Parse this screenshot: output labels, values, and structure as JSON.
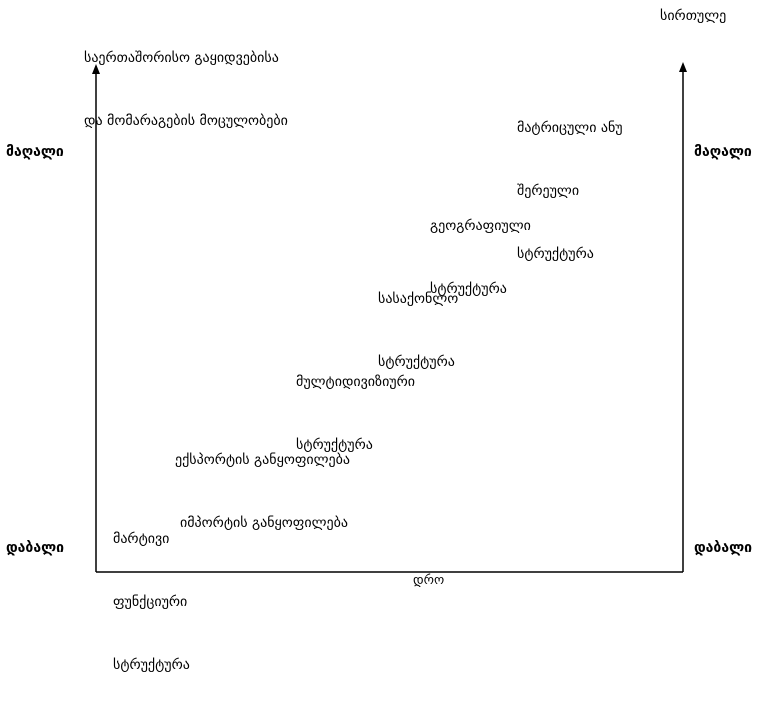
{
  "axes": {
    "left_title_lines": [
      "საერთაშორისო გაყიდვებისა",
      "და მომარაგების მოცულობები"
    ],
    "right_title": "სირთულე",
    "x_label": "დრო",
    "left_high": "მაღალი",
    "left_low": "დაბალი",
    "right_high": "მაღალი",
    "right_low": "დაბალი"
  },
  "stages": [
    {
      "lines": [
        "მარტივი",
        "ფუნქციური",
        "სტრუქტურა"
      ]
    },
    {
      "lines": [
        "ექსპორტის განყოფილება",
        "იმპორტის განყოფილება"
      ]
    },
    {
      "lines": [
        "მულტიდივიზიური",
        "სტრუქტურა"
      ]
    },
    {
      "lines": [
        "სასაქონლო",
        "სტრუქტურა"
      ]
    },
    {
      "lines": [
        "გეოგრაფიული",
        "სტრუქტურა"
      ]
    },
    {
      "lines": [
        "მატრიცული ანუ",
        "შერეული",
        "სტრუქტურა"
      ]
    }
  ]
}
